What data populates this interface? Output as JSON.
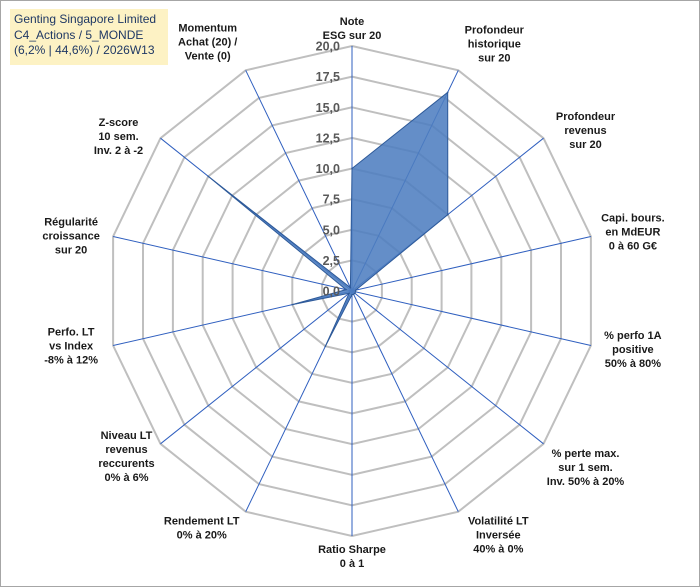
{
  "info": {
    "line1": "Genting Singapore Limited",
    "line2": "C4_Actions / 5_MONDE",
    "line3": "(6,2% | 44,6%) / 2026W13"
  },
  "chart_data": {
    "type": "radar",
    "title": "Genting Singapore Limited",
    "rmin": 0,
    "rmax": 20,
    "tick_values": [
      0,
      2.5,
      5,
      7.5,
      10,
      12.5,
      15,
      17.5,
      20
    ],
    "tick_labels": [
      "0,0",
      "2,5",
      "5,0",
      "7,5",
      "10,0",
      "12,5",
      "15,0",
      "17,5",
      "20,0"
    ],
    "axes": [
      {
        "label": [
          "Note",
          "ESG sur 20"
        ],
        "value": 10.0
      },
      {
        "label": [
          "Profondeur",
          "historique",
          "sur 20"
        ],
        "value": 18.0
      },
      {
        "label": [
          "Profondeur",
          "revenus",
          "sur 20"
        ],
        "value": 10.0
      },
      {
        "label": [
          "Capi. bours.",
          "en MdEUR",
          "0 à 60 G€"
        ],
        "value": 0.3
      },
      {
        "label": [
          "% perfo 1A",
          "positive",
          "50% à 80%"
        ],
        "value": 0.3
      },
      {
        "label": [
          "% perte max.",
          "sur 1 sem.",
          "Inv. 50% à 20%"
        ],
        "value": 0.3
      },
      {
        "label": [
          "Volatilité LT",
          "Inversée",
          "40% à 0%"
        ],
        "value": 0.3
      },
      {
        "label": [
          "Ratio Sharpe",
          "0 à 1"
        ],
        "value": 0.3
      },
      {
        "label": [
          "Rendement LT",
          "0% à 20%"
        ],
        "value": 5.0
      },
      {
        "label": [
          "Niveau LT",
          "revenus",
          "reccurents",
          "0% à 6%"
        ],
        "value": 0.3
      },
      {
        "label": [
          "Perfo. LT",
          "vs Index",
          "-8% à 12%"
        ],
        "value": 5.0
      },
      {
        "label": [
          "Régularité",
          "croissance",
          "sur 20"
        ],
        "value": 0.5
      },
      {
        "label": [
          "Z-score",
          "10 sem.",
          "Inv. 2 à -2"
        ],
        "value": 15.0
      },
      {
        "label": [
          "Momentum",
          "Achat (20) /",
          "Vente (0)"
        ],
        "value": 0.3
      }
    ],
    "series": [
      {
        "name": "Genting Singapore Limited",
        "color": "#4f7ec0"
      }
    ],
    "colors": {
      "grid": "#bfbfbf",
      "spoke": "#2f5fbf",
      "fill": "#4f7ec0",
      "stroke": "#2e5a99"
    }
  }
}
